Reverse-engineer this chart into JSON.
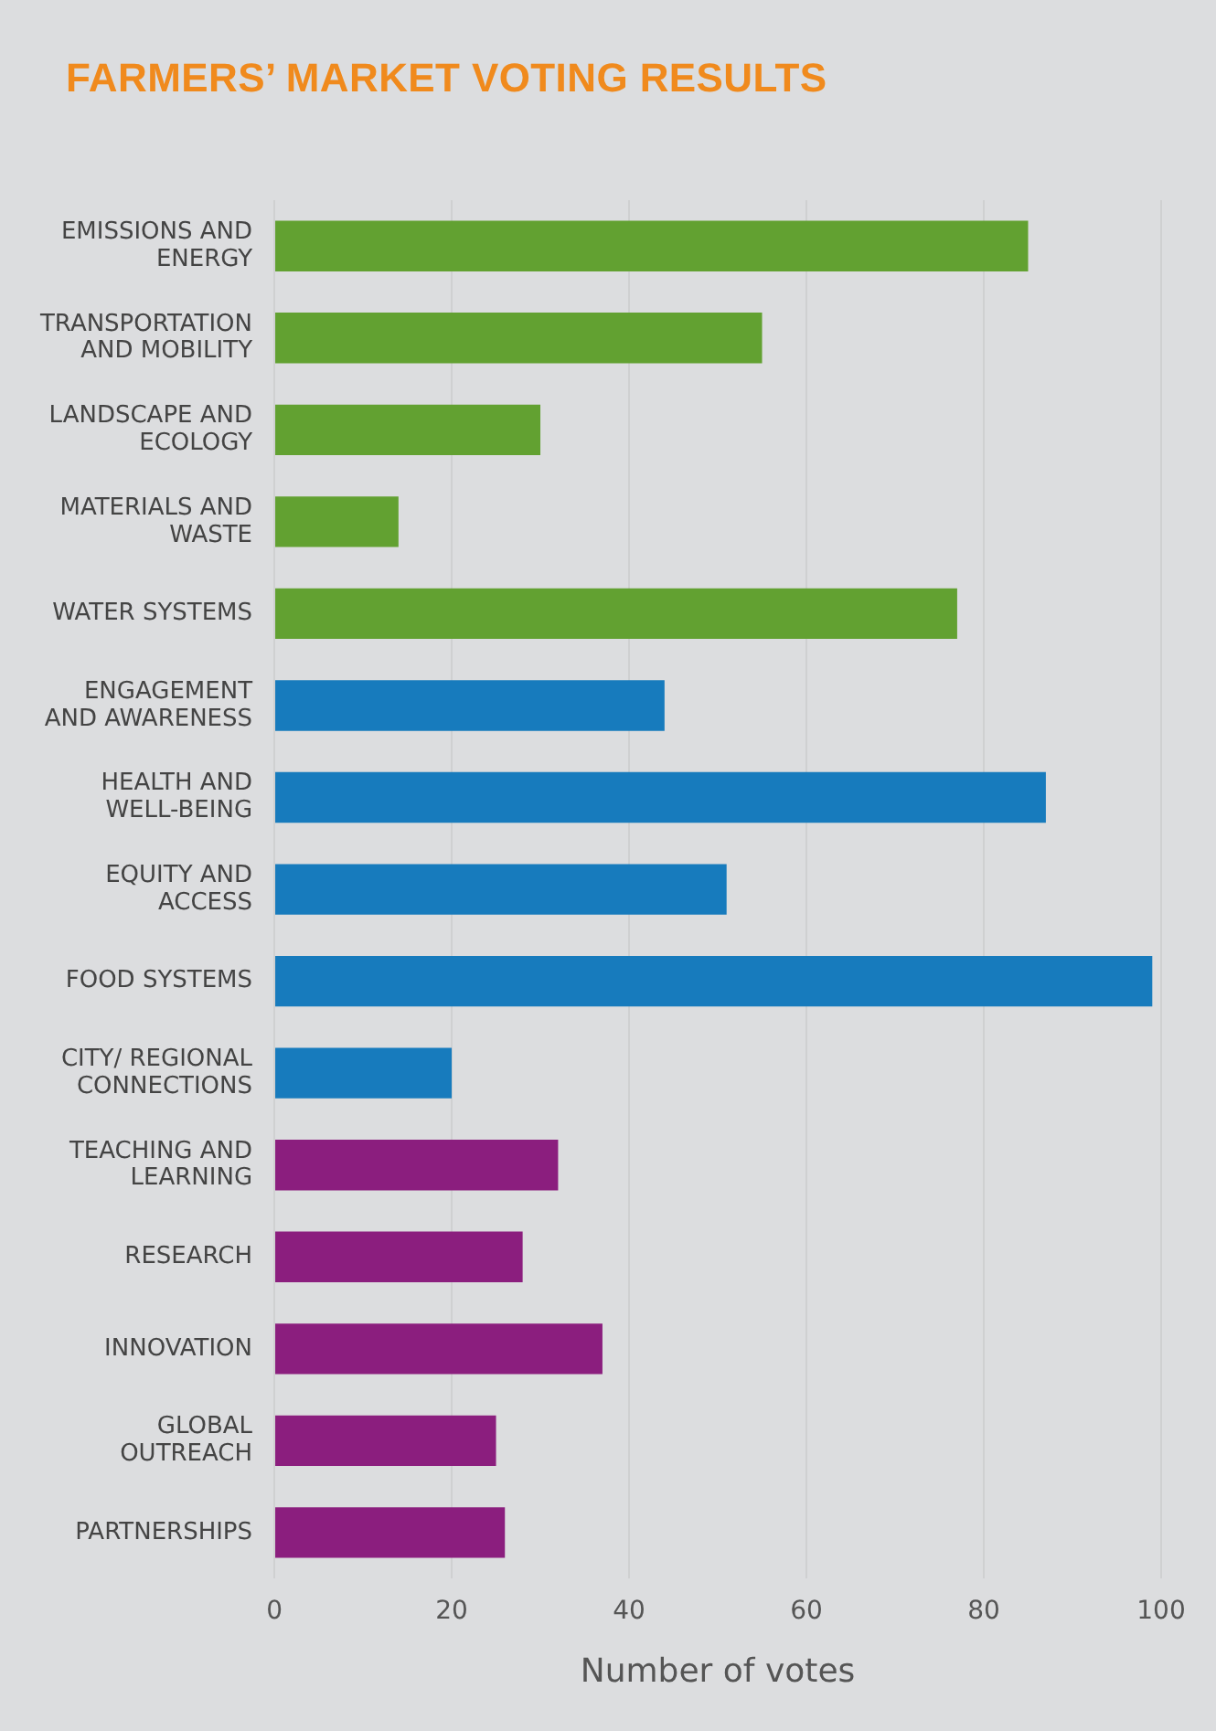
{
  "chart_data": {
    "type": "bar",
    "orientation": "horizontal",
    "title": "FARMERS’ MARKET VOTING RESULTS",
    "xlabel": "Number of votes",
    "categories": [
      "EMISSIONS AND\nENERGY",
      "TRANSPORTATION\nAND MOBILITY",
      "LANDSCAPE AND\nECOLOGY",
      "MATERIALS AND\nWASTE",
      "WATER SYSTEMS",
      "ENGAGEMENT\nAND AWARENESS",
      "HEALTH AND\nWELL-BEING",
      "EQUITY AND\nACCESS",
      "FOOD SYSTEMS",
      "CITY/ REGIONAL\nCONNECTIONS",
      "TEACHING AND\nLEARNING",
      "RESEARCH",
      "INNOVATION",
      "GLOBAL\nOUTREACH",
      "PARTNERSHIPS"
    ],
    "values": [
      85,
      55,
      30,
      14,
      77,
      44,
      87,
      51,
      99,
      20,
      32,
      28,
      37,
      25,
      26
    ],
    "colors": [
      "#62a131",
      "#62a131",
      "#62a131",
      "#62a131",
      "#62a131",
      "#177bbd",
      "#177bbd",
      "#177bbd",
      "#177bbd",
      "#177bbd",
      "#8b1e7e",
      "#8b1e7e",
      "#8b1e7e",
      "#8b1e7e",
      "#8b1e7e"
    ],
    "xlim": [
      0,
      100
    ],
    "xticks": [
      0,
      20,
      40,
      60,
      80,
      100
    ],
    "grid": "x",
    "legend": false
  }
}
